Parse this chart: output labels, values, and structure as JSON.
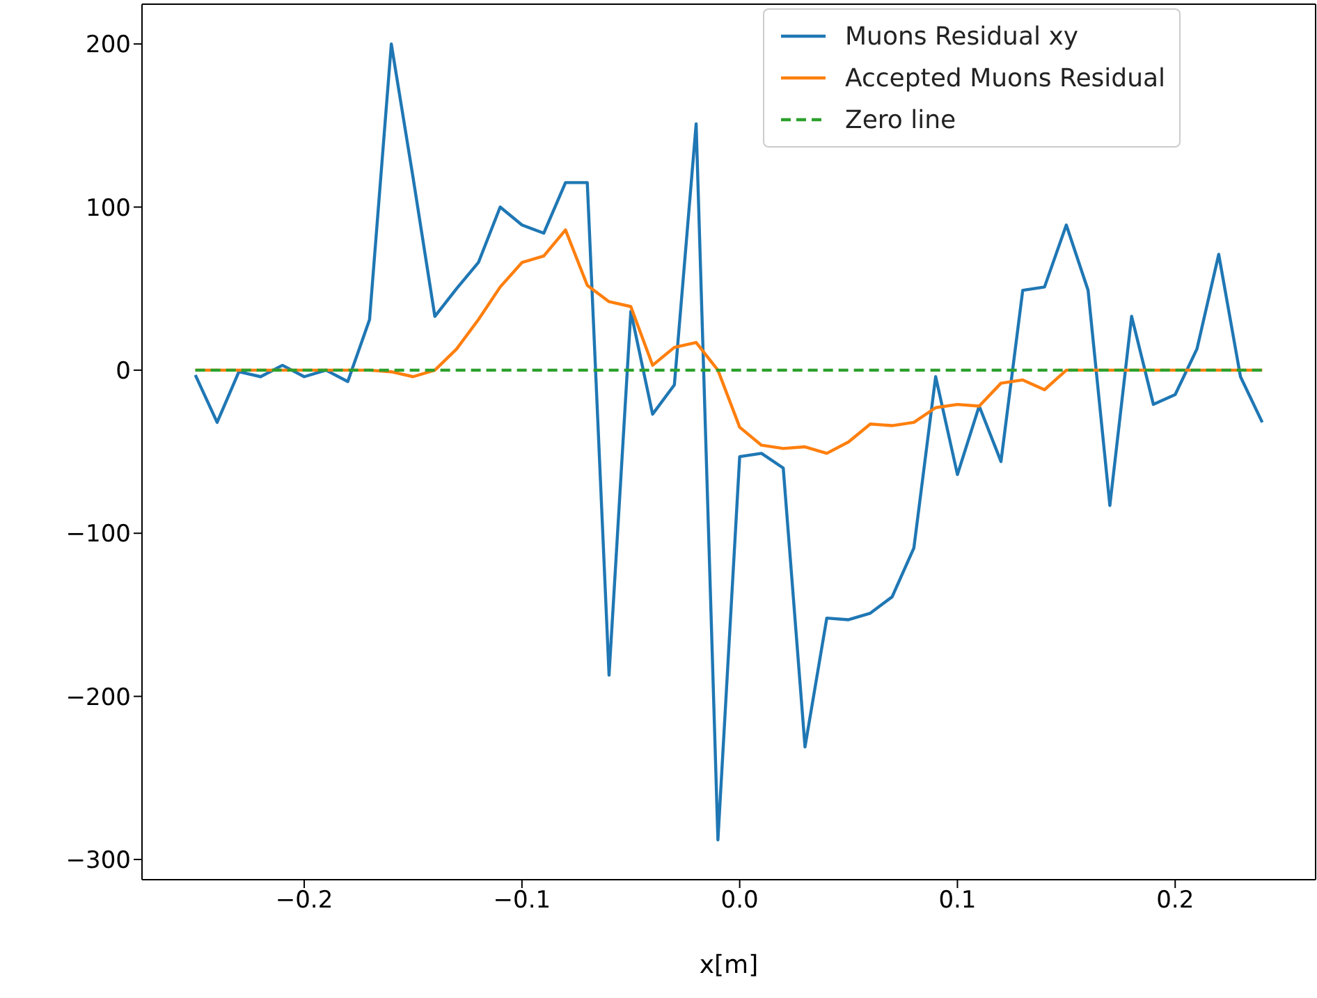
{
  "chart_data": {
    "type": "line",
    "xlabel": "x[m]",
    "x": [
      -0.25,
      -0.24,
      -0.23,
      -0.22,
      -0.21,
      -0.2,
      -0.19,
      -0.18,
      -0.17,
      -0.16,
      -0.15,
      -0.14,
      -0.13,
      -0.12,
      -0.11,
      -0.1,
      -0.09,
      -0.08,
      -0.07,
      -0.06,
      -0.05,
      -0.04,
      -0.03,
      -0.02,
      -0.01,
      0.0,
      0.01,
      0.02,
      0.03,
      0.04,
      0.05,
      0.06,
      0.07,
      0.08,
      0.09,
      0.1,
      0.11,
      0.12,
      0.13,
      0.14,
      0.15,
      0.16,
      0.17,
      0.18,
      0.19,
      0.2,
      0.21,
      0.22,
      0.23,
      0.24
    ],
    "series": [
      {
        "name": "Muons Residual xy",
        "color": "#1f77b4",
        "values": [
          -3,
          -32,
          -1,
          -4,
          3,
          -4,
          0,
          -7,
          31,
          200,
          118,
          33,
          50,
          66,
          100,
          89,
          84,
          115,
          115,
          -187,
          36,
          -27,
          -9,
          151,
          -288,
          -53,
          -51,
          -60,
          -231,
          -152,
          -153,
          -149,
          -139,
          -109,
          -4,
          -64,
          -22,
          -56,
          49,
          51,
          89,
          49,
          -83,
          33,
          -21,
          -15,
          13,
          71,
          -4,
          -32
        ]
      },
      {
        "name": "Accepted Muons Residual",
        "color": "#ff7f0e",
        "values": [
          0,
          0,
          0,
          0,
          0,
          0,
          0,
          0,
          0,
          -1,
          -4,
          0,
          13,
          31,
          51,
          66,
          70,
          86,
          52,
          42,
          39,
          3,
          14,
          17,
          0,
          -35,
          -46,
          -48,
          -47,
          -51,
          -44,
          -33,
          -34,
          -32,
          -23,
          -21,
          -22,
          -8,
          -6,
          -12,
          0,
          0,
          0,
          0,
          0,
          0,
          0,
          0,
          0,
          0
        ]
      },
      {
        "name": "Zero line",
        "color": "#2ca02c",
        "line_style": "dashed",
        "x": [
          -0.25,
          0.24
        ],
        "values": [
          0,
          0
        ]
      }
    ],
    "xlim": [
      -0.2745,
      0.2645
    ],
    "xticks": [
      {
        "value": -0.2,
        "label": "−0.2"
      },
      {
        "value": -0.1,
        "label": "−0.1"
      },
      {
        "value": 0.0,
        "label": "0.0"
      },
      {
        "value": 0.1,
        "label": "0.1"
      },
      {
        "value": 0.2,
        "label": "0.2"
      }
    ],
    "ylim": [
      -312.4,
      224.4
    ],
    "yticks": [
      {
        "value": -300,
        "label": "−300"
      },
      {
        "value": -200,
        "label": "−200"
      },
      {
        "value": -100,
        "label": "−100"
      },
      0,
      100,
      200
    ],
    "grid": false,
    "legend": "top right",
    "marker": "none",
    "line_style": "solid"
  }
}
